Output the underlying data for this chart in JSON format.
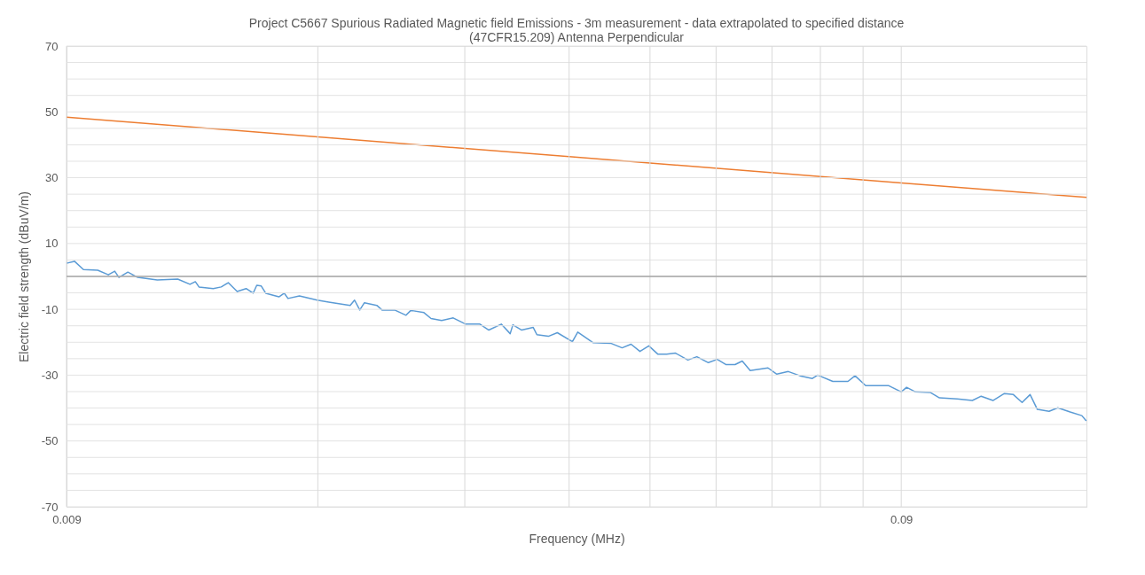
{
  "chart_data": {
    "type": "line",
    "title": "Project C5667 Spurious Radiated Magnetic field Emissions - 3m measurement  - data extrapolated to specified distance\n(47CFR15.209) Antenna  Perpendicular",
    "xlabel": "Frequency (MHz)",
    "ylabel": "Electric field strength (dBuV/m)",
    "log": "x",
    "grid": true,
    "legend": false,
    "marker": "none",
    "line_style": "solid",
    "xlim": [
      0.009,
      0.15
    ],
    "xticks": [
      0.009,
      {
        "value": 0.018,
        "label": null
      },
      {
        "value": 0.027,
        "label": null
      },
      {
        "value": 0.036,
        "label": null
      },
      {
        "value": 0.045,
        "label": null
      },
      {
        "value": 0.054,
        "label": null
      },
      {
        "value": 0.063,
        "label": null
      },
      {
        "value": 0.072,
        "label": null
      },
      {
        "value": 0.081,
        "label": null
      },
      0.09
    ],
    "ylim": [
      -70,
      70
    ],
    "yticks": [
      -70,
      {
        "value": -65,
        "label": null
      },
      {
        "value": -60,
        "label": null
      },
      {
        "value": -55,
        "label": null
      },
      -50,
      {
        "value": -45,
        "label": null
      },
      {
        "value": -40,
        "label": null
      },
      {
        "value": -35,
        "label": null
      },
      -30,
      {
        "value": -25,
        "label": null
      },
      {
        "value": -20,
        "label": null
      },
      {
        "value": -15,
        "label": null
      },
      -10,
      {
        "value": -5,
        "label": null
      },
      {
        "value": 0,
        "label": null
      },
      {
        "value": 5,
        "label": null
      },
      10,
      {
        "value": 15,
        "label": null
      },
      {
        "value": 20,
        "label": null
      },
      {
        "value": 25,
        "label": null
      },
      30,
      {
        "value": 35,
        "label": null
      },
      {
        "value": 40,
        "label": null
      },
      {
        "value": 45,
        "label": null
      },
      50,
      {
        "value": 55,
        "label": null
      },
      {
        "value": 60,
        "label": null
      },
      {
        "value": 65,
        "label": null
      },
      70
    ],
    "ref_lines": [
      {
        "axis": "y",
        "value": 0,
        "color": "#a6a6a6"
      }
    ],
    "series": [
      {
        "color": "#ed7d31",
        "x": [
          0.009,
          0.018,
          0.036,
          0.09,
          0.15
        ],
        "values": [
          48.4,
          42.4,
          36.4,
          28.4,
          24.0
        ]
      },
      {
        "color": "#5b9bd5",
        "x": [
          0.009,
          0.0092,
          0.00943,
          0.00981,
          0.0101,
          0.01028,
          0.0104,
          0.01066,
          0.01095,
          0.01156,
          0.01223,
          0.01265,
          0.01284,
          0.01297,
          0.01349,
          0.01379,
          0.01406,
          0.01441,
          0.01477,
          0.01506,
          0.01521,
          0.0154,
          0.01559,
          0.01617,
          0.01641,
          0.01658,
          0.01711,
          0.01797,
          0.01855,
          0.01968,
          0.01992,
          0.02021,
          0.02047,
          0.02118,
          0.02149,
          0.02225,
          0.02296,
          0.02325,
          0.02336,
          0.02412,
          0.0246,
          0.02533,
          0.02615,
          0.02707,
          0.02815,
          0.02885,
          0.02986,
          0.0306,
          0.03083,
          0.03159,
          0.03261,
          0.03294,
          0.034,
          0.03485,
          0.03633,
          0.03687,
          0.0375,
          0.03844,
          0.04037,
          0.04167,
          0.04271,
          0.04377,
          0.04486,
          0.04597,
          0.04711,
          0.04828,
          0.04996,
          0.05121,
          0.05286,
          0.05418,
          0.05552,
          0.0569,
          0.05804,
          0.05933,
          0.06231,
          0.06385,
          0.06591,
          0.06806,
          0.07043,
          0.07147,
          0.07451,
          0.07769,
          0.07922,
          0.08159,
          0.08423,
          0.08696,
          0.09,
          0.09133,
          0.09359,
          0.09758,
          0.1,
          0.105,
          0.1095,
          0.1122,
          0.1159,
          0.1196,
          0.1226,
          0.1256,
          0.1284,
          0.131,
          0.1353,
          0.1386,
          0.1434,
          0.1481,
          0.1499
        ],
        "values": [
          4.0,
          4.6,
          2.1,
          1.9,
          0.5,
          1.6,
          -0.3,
          1.3,
          -0.3,
          -1.1,
          -0.8,
          -2.4,
          -1.6,
          -3.2,
          -3.7,
          -3.2,
          -1.9,
          -4.6,
          -3.7,
          -5.1,
          -2.7,
          -2.9,
          -5.1,
          -6.2,
          -5.1,
          -6.7,
          -5.9,
          -7.2,
          -7.8,
          -8.8,
          -7.2,
          -10.2,
          -8.0,
          -8.8,
          -10.2,
          -10.2,
          -11.8,
          -10.4,
          -10.4,
          -11.0,
          -12.8,
          -13.4,
          -12.6,
          -14.5,
          -14.5,
          -16.3,
          -14.5,
          -17.4,
          -14.7,
          -16.3,
          -15.5,
          -17.7,
          -18.2,
          -17.1,
          -19.8,
          -16.9,
          -18.2,
          -20.1,
          -20.3,
          -21.7,
          -20.6,
          -22.8,
          -21.1,
          -23.6,
          -23.6,
          -23.3,
          -25.4,
          -24.4,
          -26.2,
          -25.2,
          -26.8,
          -26.8,
          -25.7,
          -28.6,
          -27.8,
          -29.7,
          -28.9,
          -30.2,
          -31.0,
          -30.0,
          -31.9,
          -31.9,
          -30.2,
          -33.2,
          -33.2,
          -33.2,
          -35.1,
          -33.7,
          -35.1,
          -35.3,
          -36.9,
          -37.2,
          -37.7,
          -36.4,
          -37.7,
          -35.6,
          -35.9,
          -38.3,
          -35.9,
          -40.4,
          -41.0,
          -39.9,
          -41.2,
          -42.3,
          -43.9
        ]
      }
    ]
  }
}
